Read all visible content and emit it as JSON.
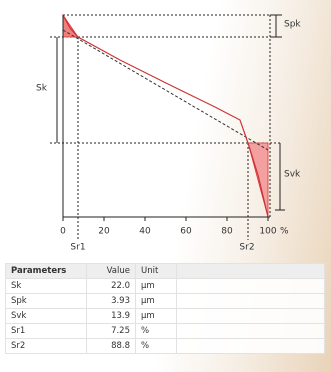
{
  "diagram": {
    "labels": {
      "spk": "Spk",
      "sk": "Sk",
      "svk": "Svk",
      "sr1": "Sr1",
      "sr2": "Sr2"
    },
    "xlim": [
      0,
      100
    ],
    "xticks": [
      0,
      20,
      40,
      60,
      80,
      100
    ],
    "x_unit": "%"
  },
  "table": {
    "header": [
      "Parameters",
      "Value",
      "Unit"
    ],
    "rows": [
      [
        "Sk",
        "22.0",
        "µm"
      ],
      [
        "Spk",
        "3.93",
        "µm"
      ],
      [
        "Svk",
        "13.9",
        "µm"
      ],
      [
        "Sr1",
        "7.25",
        "%"
      ],
      [
        "Sr2",
        "88.8",
        "%"
      ]
    ]
  }
}
